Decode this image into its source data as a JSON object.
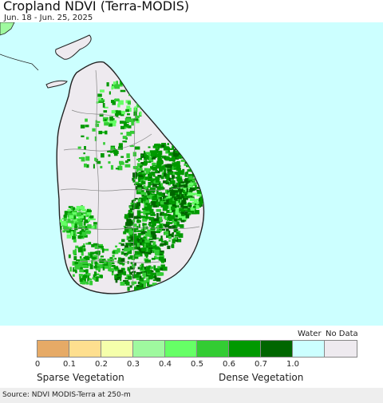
{
  "title": "Cropland NDVI (Terra-MODIS)",
  "date_range": "Jun. 18 - Jun. 25, 2025",
  "legend": {
    "water_label": "Water",
    "nodata_label": "No Data",
    "ticks": [
      "0",
      "0.1",
      "0.2",
      "0.3",
      "0.4",
      "0.5",
      "0.6",
      "0.7",
      "1.0"
    ],
    "colors": [
      "#e6aa66",
      "#fedf8f",
      "#f5ffab",
      "#9ff99f",
      "#66ff66",
      "#33cc33",
      "#009900",
      "#006600",
      "#ccffff",
      "#eeeaef"
    ],
    "sparse_label": "Sparse Vegetation",
    "dense_label": "Dense Vegetation"
  },
  "map_colors": {
    "water": "#ccffff",
    "land_no_data": "#eeeaef",
    "boundary": "#222222",
    "district_lines": "#888888"
  },
  "source": "Source: NDVI MODIS-Terra at 250-m"
}
